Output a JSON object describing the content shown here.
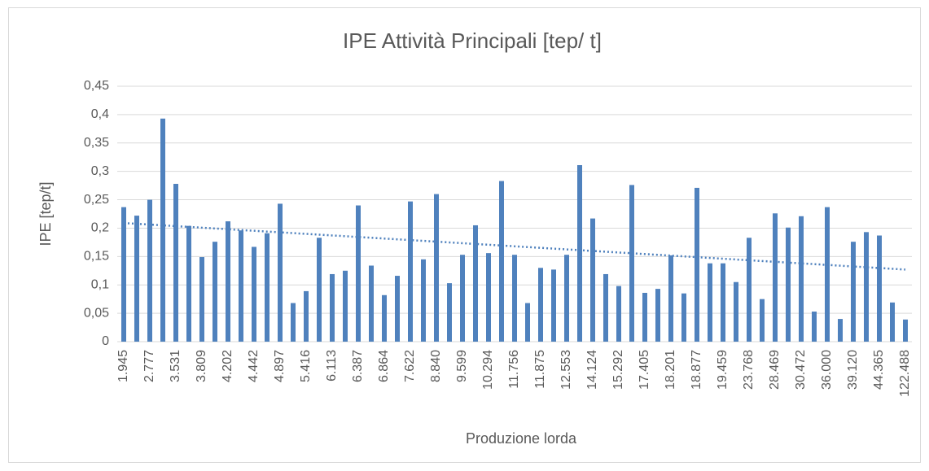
{
  "chart_data": {
    "type": "bar",
    "title": "IPE Attività Principali [tep/ t]",
    "x_label": "Produzione lorda",
    "y_label": "IPE [tep/t]",
    "color": "#4f81bd",
    "categories": [
      "1.945",
      null,
      "2.777",
      null,
      "3.531",
      null,
      "3.809",
      null,
      "4.202",
      null,
      "4.442",
      null,
      "4.897",
      null,
      "5.416",
      null,
      "6.113",
      null,
      "6.387",
      null,
      "6.864",
      null,
      "7.622",
      null,
      "8.840",
      null,
      "9.599",
      null,
      "10.294",
      null,
      "11.756",
      null,
      "11.875",
      null,
      "12.553",
      null,
      "14.124",
      null,
      "15.292",
      null,
      "17.405",
      null,
      "18.201",
      null,
      "18.877",
      null,
      "19.459",
      null,
      "23.768",
      null,
      "28.469",
      null,
      "30.472",
      null,
      "36.000",
      null,
      "39.120",
      null,
      "44.365",
      null,
      "122.488"
    ],
    "values": [
      0.237,
      0.222,
      0.25,
      0.393,
      0.278,
      0.204,
      0.149,
      0.176,
      0.212,
      0.196,
      0.167,
      0.191,
      0.243,
      0.068,
      0.089,
      0.183,
      0.119,
      0.125,
      0.24,
      0.134,
      0.082,
      0.116,
      0.247,
      0.145,
      0.26,
      0.103,
      0.153,
      0.205,
      0.156,
      0.283,
      0.153,
      0.068,
      0.13,
      0.127,
      0.153,
      0.311,
      0.217,
      0.119,
      0.098,
      0.276,
      0.086,
      0.093,
      0.152,
      0.085,
      0.271,
      0.138,
      0.138,
      0.105,
      0.183,
      0.075,
      0.226,
      0.201,
      0.221,
      0.053,
      0.237,
      0.04,
      0.176,
      0.193,
      0.187,
      0.069,
      0.039
    ],
    "trendline": {
      "start": 0.209,
      "end": 0.127
    },
    "ylim": [
      0,
      0.45
    ],
    "yticks": [
      0,
      {
        "value": 0.05,
        "label": "0,05"
      },
      {
        "value": 0.1,
        "label": "0,1"
      },
      {
        "value": 0.15,
        "label": "0,15"
      },
      {
        "value": 0.2,
        "label": "0,2"
      },
      {
        "value": 0.25,
        "label": "0,25"
      },
      {
        "value": 0.3,
        "label": "0,3"
      },
      {
        "value": 0.35,
        "label": "0,35"
      },
      {
        "value": 0.4,
        "label": "0,4"
      },
      {
        "value": 0.45,
        "label": "0,45"
      }
    ],
    "grid": true
  }
}
